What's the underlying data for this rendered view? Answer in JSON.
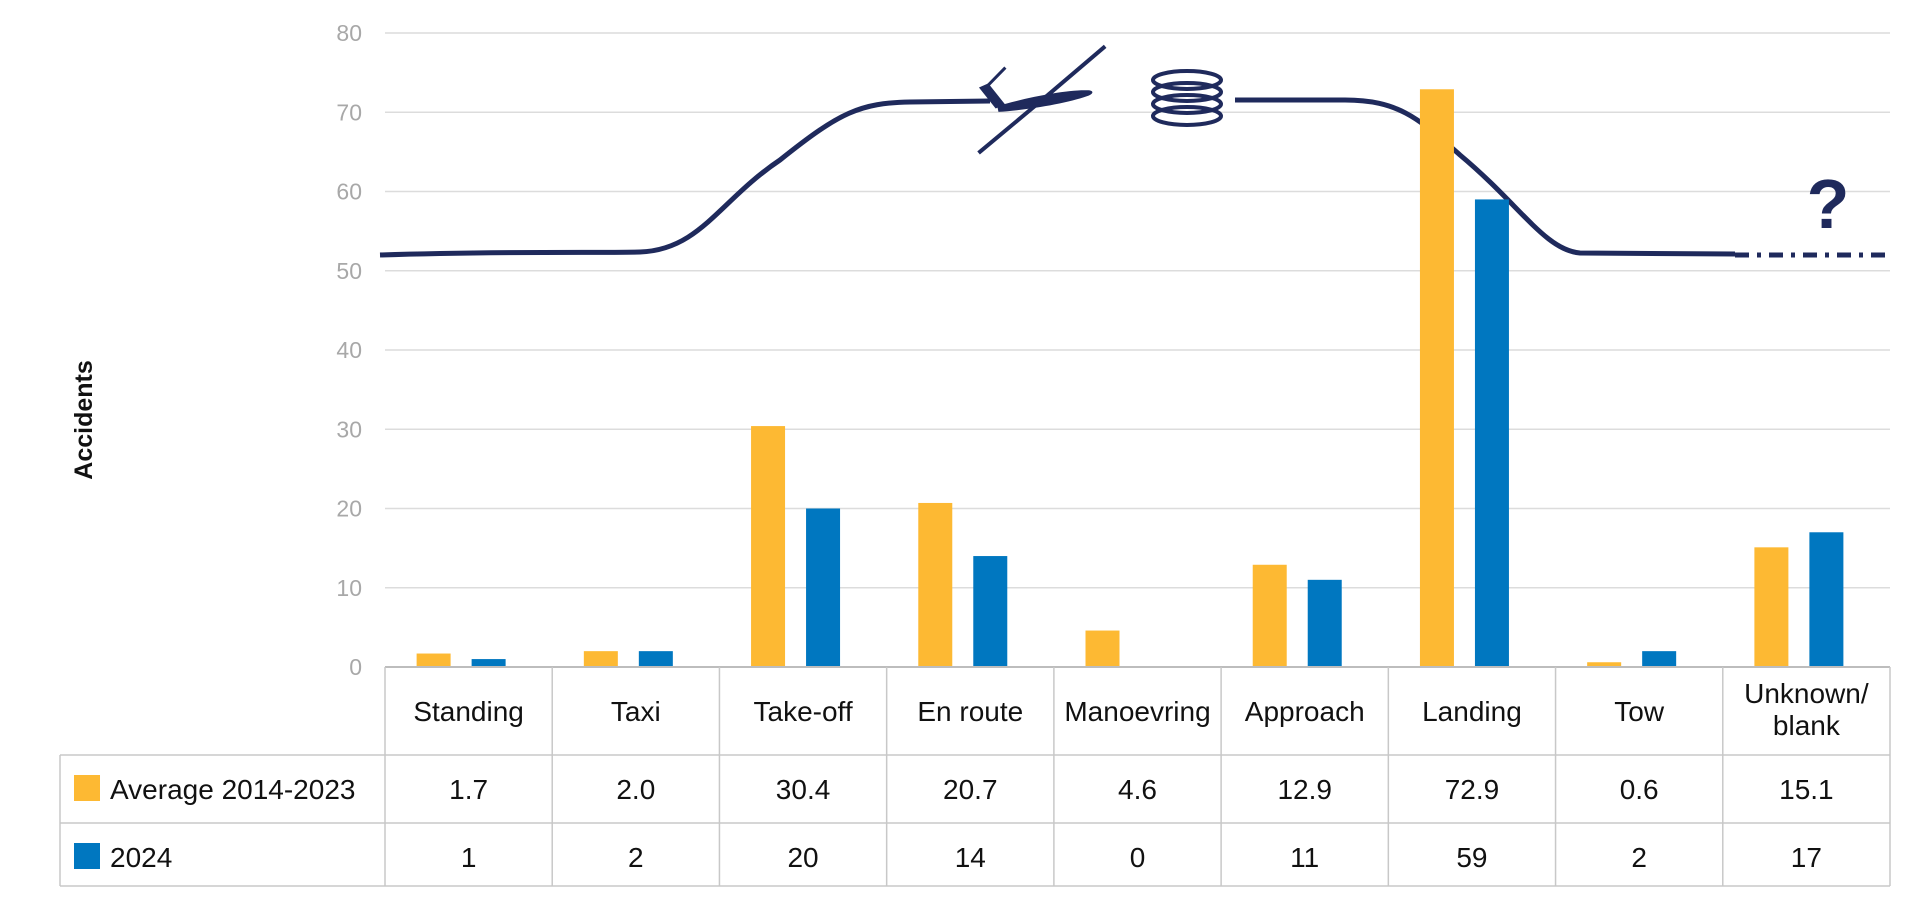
{
  "chart_data": {
    "type": "bar",
    "ylabel": "Accidents",
    "xlabel": "",
    "ylim": [
      0,
      80
    ],
    "yticks": [
      0,
      10,
      20,
      30,
      40,
      50,
      60,
      70,
      80
    ],
    "grid": true,
    "categories": [
      "Standing",
      "Taxi",
      "Take-off",
      "En route",
      "Manoevring",
      "Approach",
      "Landing",
      "Tow",
      "Unknown/\nblank"
    ],
    "series": [
      {
        "name": "Average 2014-2023",
        "color": "#FDB933",
        "values": [
          1.7,
          2.0,
          30.4,
          20.7,
          4.6,
          12.9,
          72.9,
          0.6,
          15.1
        ],
        "display": [
          "1.7",
          "2.0",
          "30.4",
          "20.7",
          "4.6",
          "12.9",
          "72.9",
          "0.6",
          "15.1"
        ]
      },
      {
        "name": "2024",
        "color": "#0077C0",
        "values": [
          1,
          2,
          20,
          14,
          0,
          11,
          59,
          2,
          17
        ],
        "display": [
          "1",
          "2",
          "20",
          "14",
          "0",
          "11",
          "59",
          "2",
          "17"
        ]
      }
    ],
    "legend_placement": "data-table-left",
    "flight_profile": {
      "color": "#1F2A5C",
      "icons": [
        "glider-icon",
        "thermal-spiral-icon",
        "question-mark-icon"
      ],
      "question_mark": "?"
    }
  }
}
